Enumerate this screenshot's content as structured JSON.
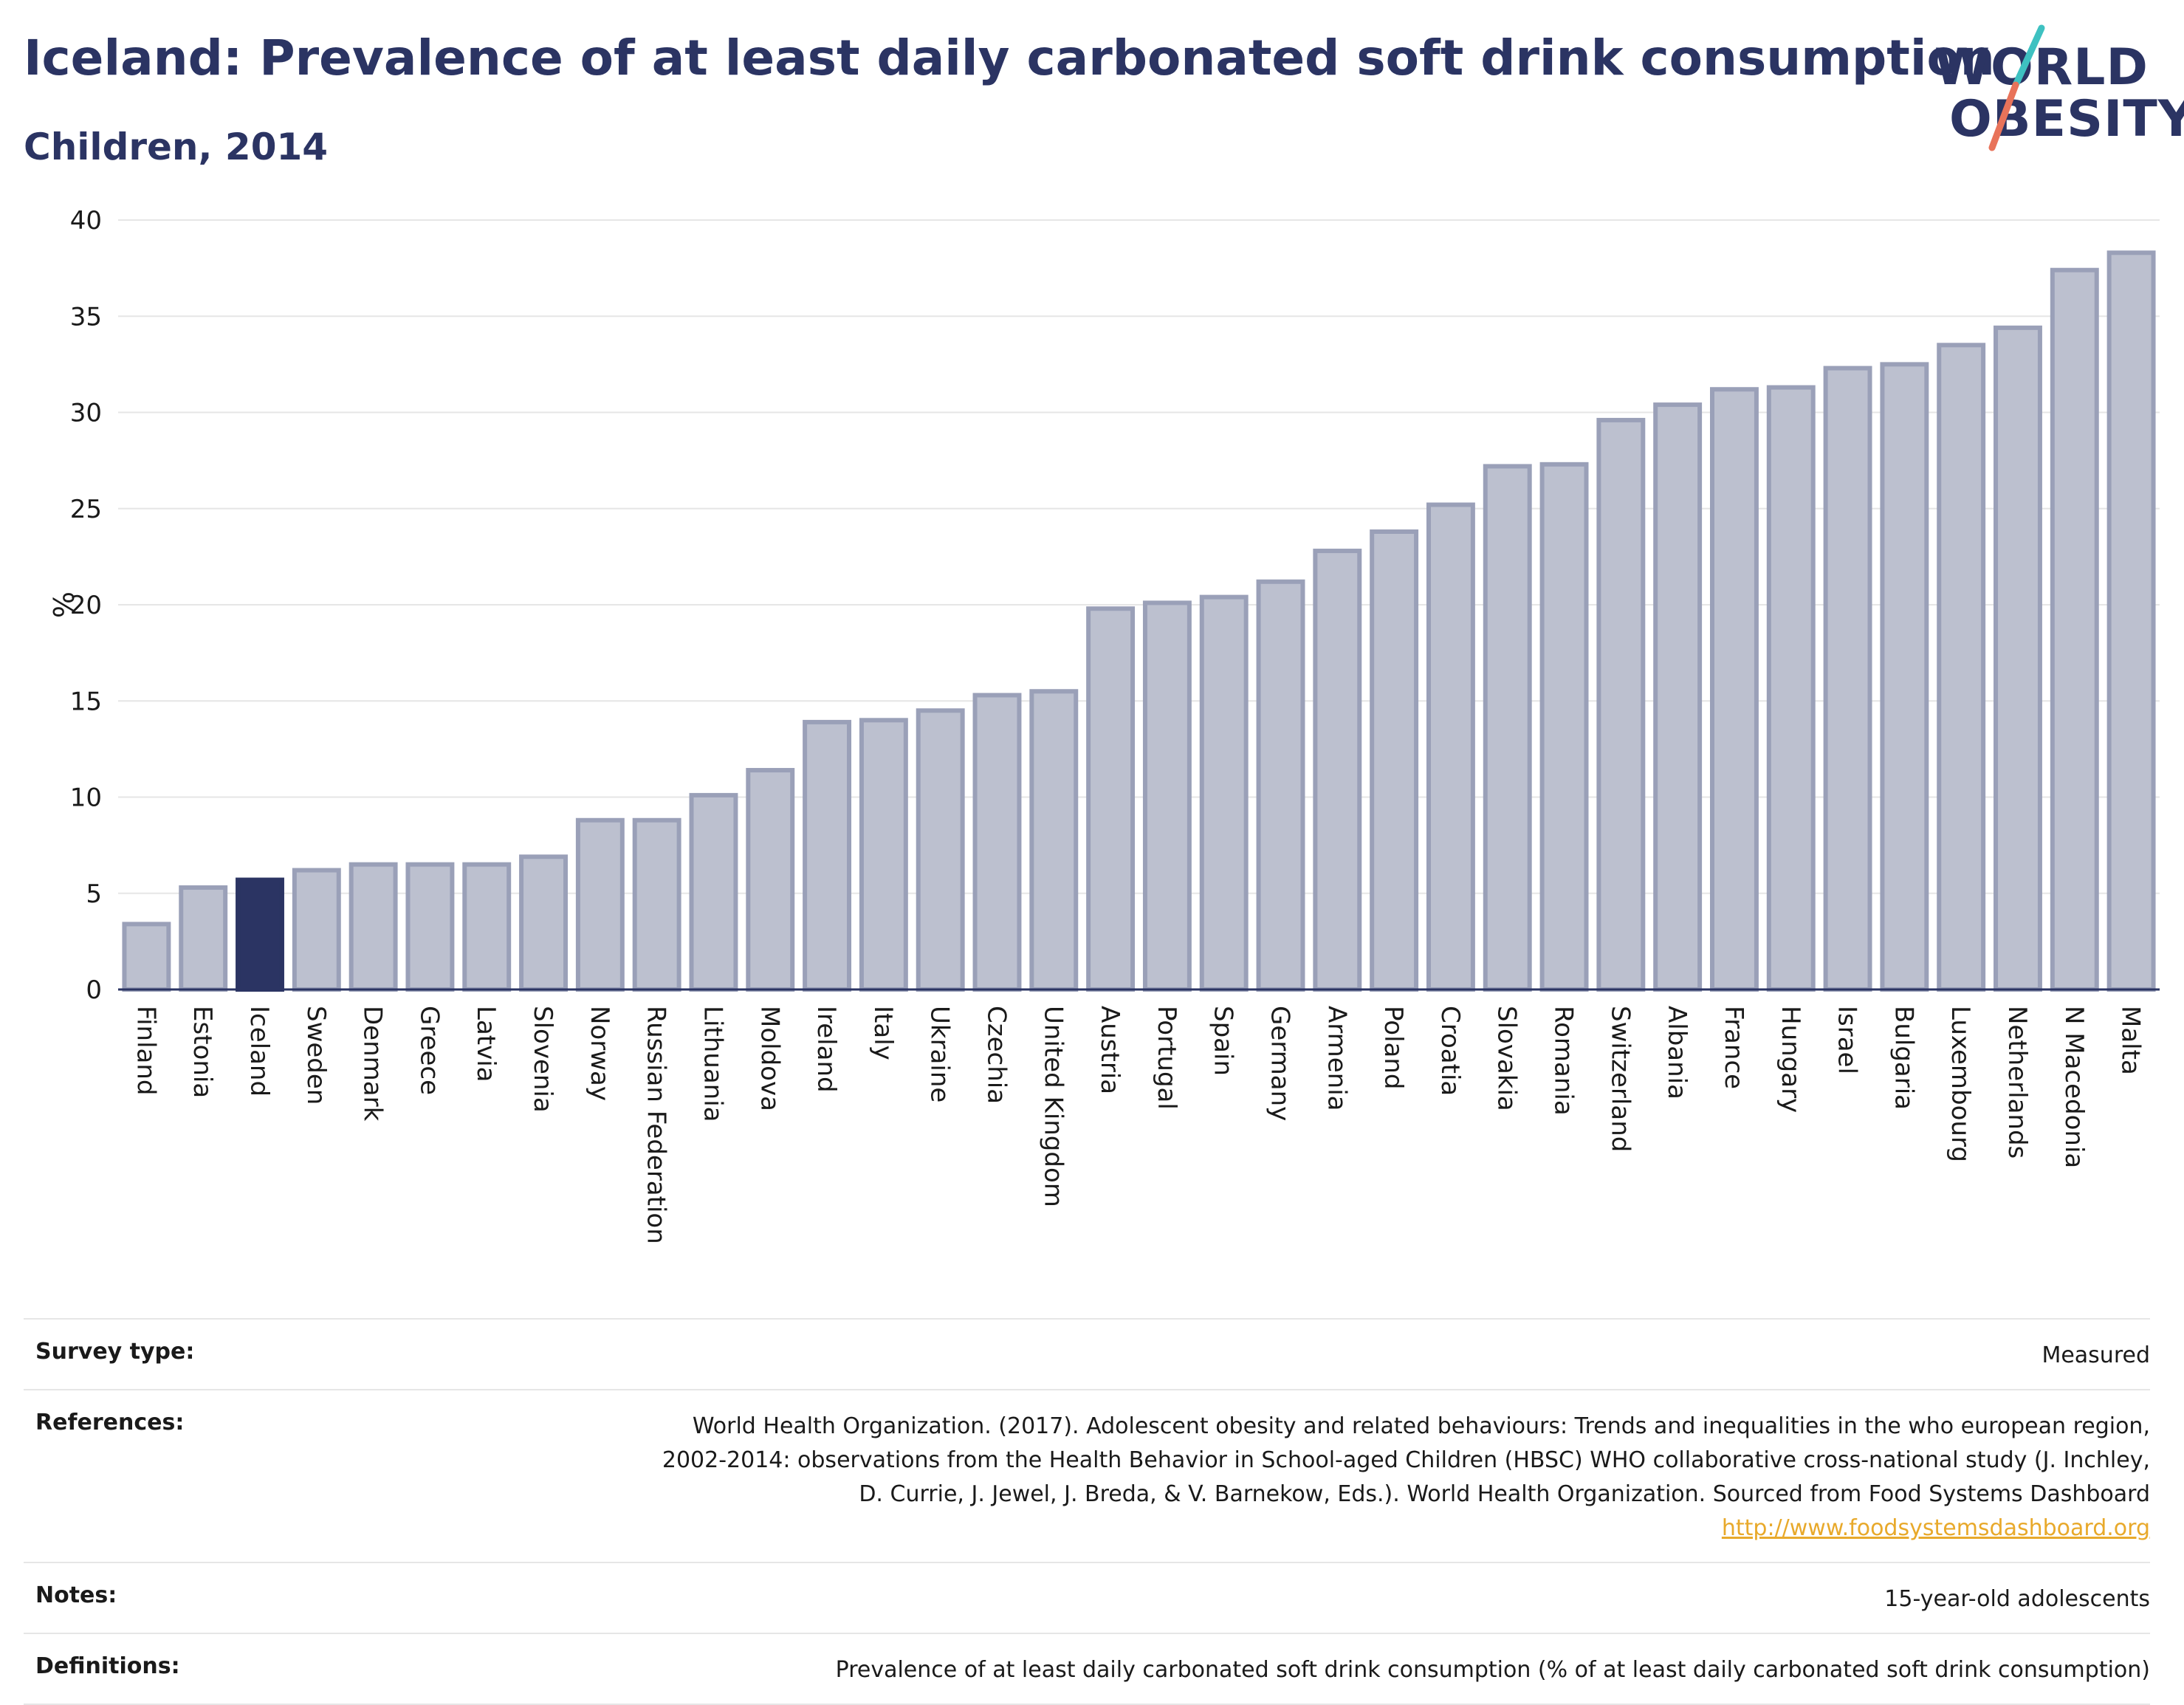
{
  "title": "Iceland: Prevalence of at least daily carbonated soft drink consumption",
  "subtitle": "Children, 2014",
  "logo": {
    "line1": "WORLD",
    "line2": "OBESITY",
    "colors": {
      "text": "#2b3463",
      "slash_top": "#3ec1c1",
      "slash_bottom": "#e8735a"
    }
  },
  "colors": {
    "highlight": "#2b3463",
    "bar_fill": "#bcc0cf",
    "bar_stroke": "#9aa0b8",
    "grid": "#e6e6e6",
    "axis": "#2b3463"
  },
  "chart_data": {
    "type": "bar",
    "ylabel": "%",
    "ylim": [
      0,
      40
    ],
    "yticks": [
      0,
      5,
      10,
      15,
      20,
      25,
      30,
      35,
      40
    ],
    "grid": true,
    "highlight": "Iceland",
    "categories": [
      "Finland",
      "Estonia",
      "Iceland",
      "Sweden",
      "Denmark",
      "Greece",
      "Latvia",
      "Slovenia",
      "Norway",
      "Russian Federation",
      "Lithuania",
      "Moldova",
      "Ireland",
      "Italy",
      "Ukraine",
      "Czechia",
      "United Kingdom",
      "Austria",
      "Portugal",
      "Spain",
      "Germany",
      "Armenia",
      "Poland",
      "Croatia",
      "Slovakia",
      "Romania",
      "Switzerland",
      "Albania",
      "France",
      "Hungary",
      "Israel",
      "Bulgaria",
      "Luxembourg",
      "Netherlands",
      "N Macedonia",
      "Malta"
    ],
    "values": [
      3.4,
      5.3,
      5.7,
      6.2,
      6.5,
      6.5,
      6.5,
      6.9,
      8.8,
      8.8,
      10.1,
      11.4,
      13.9,
      14.0,
      14.5,
      15.3,
      15.5,
      19.8,
      20.1,
      20.4,
      21.2,
      22.8,
      23.8,
      25.2,
      27.2,
      27.3,
      29.6,
      30.4,
      31.2,
      31.3,
      32.3,
      32.5,
      33.5,
      34.4,
      37.4,
      38.3
    ]
  },
  "meta": {
    "survey_label": "Survey type:",
    "survey_value": "Measured",
    "references_label": "References:",
    "references_line1": "World Health Organization. (2017). Adolescent obesity and related behaviours: Trends and inequalities in the who european region,",
    "references_line2": "2002-2014: observations from the Health Behavior in School-aged Children (HBSC) WHO collaborative cross-national study (J. Inchley,",
    "references_line3": "D. Currie, J. Jewel, J. Breda, & V. Barnekow, Eds.). World Health Organization. Sourced from Food Systems Dashboard",
    "references_link": "http://www.foodsystemsdashboard.org",
    "notes_label": "Notes:",
    "notes_value": "15-year-old adolescents",
    "definitions_label": "Definitions:",
    "definitions_value": "Prevalence of at least daily carbonated soft drink consumption (% of at least daily carbonated soft drink consumption)"
  }
}
